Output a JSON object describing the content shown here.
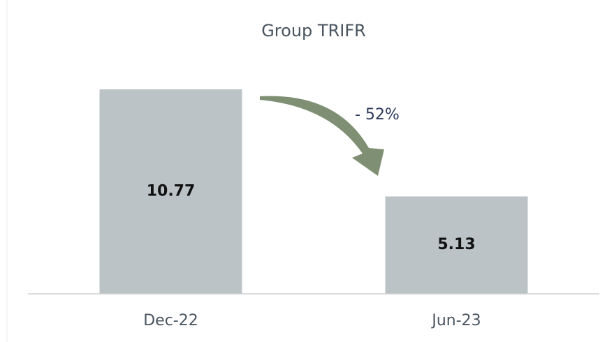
{
  "chart_data": {
    "type": "bar",
    "title": "Group TRIFR",
    "categories": [
      "Dec-22",
      "Jun-23"
    ],
    "values": [
      10.77,
      5.13
    ],
    "color": "#bcc3c7",
    "annotation": "- 52%"
  }
}
